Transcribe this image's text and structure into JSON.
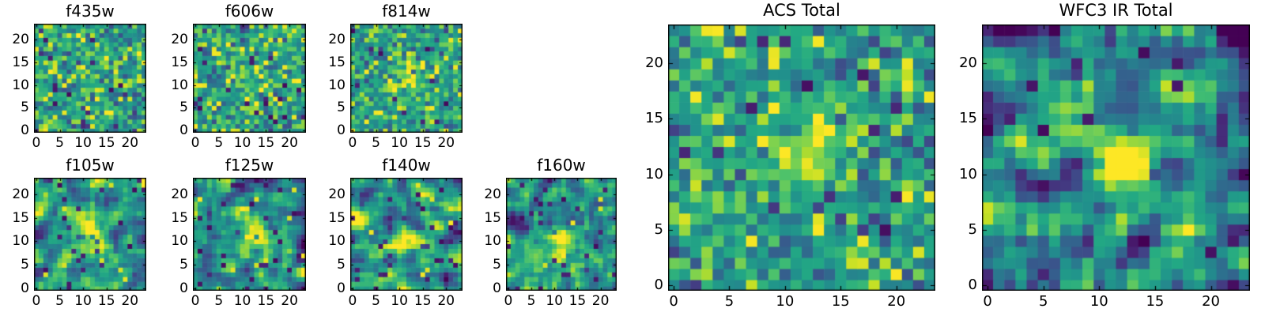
{
  "figure": {
    "background": "#ffffff",
    "text_color": "#000000",
    "frame_color": "#000000",
    "colormap": "viridis",
    "colormap_stops": [
      "#440154",
      "#482475",
      "#414487",
      "#355f8d",
      "#2a788e",
      "#21918c",
      "#22a884",
      "#44bf70",
      "#7ad151",
      "#bddf26",
      "#fde725"
    ]
  },
  "chart_data": [
    {
      "type": "heatmap",
      "title": "f435w",
      "grid_size": [
        24,
        24
      ],
      "xlim": [
        -0.5,
        23.5
      ],
      "ylim": [
        -0.5,
        23.5
      ],
      "xticks": [
        0,
        5,
        10,
        15,
        20
      ],
      "yticks": [
        0,
        5,
        10,
        15,
        20
      ],
      "colormap": "viridis",
      "content_summary": "Noisy green/yellow optical cutout, no visible source, scattered dark-purple and yellow outlier pixels",
      "data_model": {
        "seed": 4350,
        "base": 0.57,
        "noise_sigma": 0.17,
        "smooth_passes": 0,
        "gain": 1.0,
        "p_dark": 0.03,
        "p_bright": 0.045,
        "source": {
          "x": 12,
          "y": 11,
          "sigma": 2.5,
          "amplitude": 0.05
        }
      }
    },
    {
      "type": "heatmap",
      "title": "f606w",
      "grid_size": [
        24,
        24
      ],
      "xlim": [
        -0.5,
        23.5
      ],
      "ylim": [
        -0.5,
        23.5
      ],
      "xticks": [
        0,
        5,
        10,
        15,
        20
      ],
      "yticks": [
        0,
        5,
        10,
        15,
        20
      ],
      "colormap": "viridis",
      "content_summary": "Noisy optical cutout with very faint central brightening near (12,11)",
      "data_model": {
        "seed": 6060,
        "base": 0.57,
        "noise_sigma": 0.17,
        "smooth_passes": 0,
        "gain": 1.0,
        "p_dark": 0.03,
        "p_bright": 0.055,
        "source": {
          "x": 12,
          "y": 11,
          "sigma": 2.6,
          "amplitude": 0.13
        }
      }
    },
    {
      "type": "heatmap",
      "title": "f814w",
      "grid_size": [
        24,
        24
      ],
      "xlim": [
        -0.5,
        23.5
      ],
      "ylim": [
        -0.5,
        23.5
      ],
      "xticks": [
        0,
        5,
        10,
        15,
        20
      ],
      "yticks": [
        0,
        5,
        10,
        15,
        20
      ],
      "colormap": "viridis",
      "content_summary": "Noisy optical cutout with faint diffuse yellow source centered near (12,11)",
      "data_model": {
        "seed": 8140,
        "base": 0.57,
        "noise_sigma": 0.16,
        "smooth_passes": 0,
        "gain": 1.0,
        "p_dark": 0.028,
        "p_bright": 0.045,
        "source": {
          "x": 12,
          "y": 11,
          "sigma": 2.8,
          "amplitude": 0.28
        }
      }
    },
    {
      "type": "heatmap",
      "title": "f105w",
      "grid_size": [
        24,
        24
      ],
      "xlim": [
        -0.5,
        23.5
      ],
      "ylim": [
        -0.5,
        23.5
      ],
      "xticks": [
        0,
        5,
        10,
        15,
        20
      ],
      "yticks": [
        0,
        5,
        10,
        15,
        20
      ],
      "colormap": "viridis",
      "content_summary": "Smoother IR cutout, teal/green mottled background, bright yellow blob around (10-15, 10-14), dark pixels near (7,5) and bottom corners",
      "data_model": {
        "seed": 1050,
        "base": 0.5,
        "noise_sigma": 0.26,
        "smooth_passes": 1,
        "gain": 1.9,
        "p_dark": 0.035,
        "p_bright": 0.012,
        "source": {
          "x": 12,
          "y": 12,
          "sigma": 2.3,
          "amplitude": 0.48
        }
      }
    },
    {
      "type": "heatmap",
      "title": "f125w",
      "grid_size": [
        24,
        24
      ],
      "xlim": [
        -0.5,
        23.5
      ],
      "ylim": [
        -0.5,
        23.5
      ],
      "xticks": [
        0,
        5,
        10,
        15,
        20
      ],
      "yticks": [
        0,
        5,
        10,
        15,
        20
      ],
      "colormap": "viridis",
      "content_summary": "Smooth IR cutout with yellow source near (12,11.5) and dark mottling around it",
      "data_model": {
        "seed": 1250,
        "base": 0.5,
        "noise_sigma": 0.27,
        "smooth_passes": 1,
        "gain": 1.9,
        "p_dark": 0.04,
        "p_bright": 0.015,
        "source": {
          "x": 12,
          "y": 11.5,
          "sigma": 2.2,
          "amplitude": 0.45
        }
      }
    },
    {
      "type": "heatmap",
      "title": "f140w",
      "grid_size": [
        24,
        24
      ],
      "xlim": [
        -0.5,
        23.5
      ],
      "ylim": [
        -0.5,
        23.5
      ],
      "xticks": [
        0,
        5,
        10,
        15,
        20
      ],
      "yticks": [
        0,
        5,
        10,
        15,
        20
      ],
      "colormap": "viridis",
      "content_summary": "Smooth IR cutout with strong yellow source near (11.5,10.5), dark purple clumps at upper right",
      "data_model": {
        "seed": 1400,
        "base": 0.5,
        "noise_sigma": 0.26,
        "smooth_passes": 1,
        "gain": 1.9,
        "p_dark": 0.04,
        "p_bright": 0.012,
        "source": {
          "x": 11.5,
          "y": 10.5,
          "sigma": 2.4,
          "amplitude": 0.52
        }
      }
    },
    {
      "type": "heatmap",
      "title": "f160w",
      "grid_size": [
        24,
        24
      ],
      "xlim": [
        -0.5,
        23.5
      ],
      "ylim": [
        -0.5,
        23.5
      ],
      "xticks": [
        0,
        5,
        10,
        15,
        20
      ],
      "yticks": [
        0,
        5,
        10,
        15,
        20
      ],
      "colormap": "viridis",
      "content_summary": "Smooth IR cutout with compact bright yellow source near (11.5,10.5)",
      "data_model": {
        "seed": 1600,
        "base": 0.49,
        "noise_sigma": 0.25,
        "smooth_passes": 1,
        "gain": 1.9,
        "p_dark": 0.04,
        "p_bright": 0.008,
        "source": {
          "x": 11.5,
          "y": 10.5,
          "sigma": 1.9,
          "amplitude": 0.58
        }
      }
    },
    {
      "type": "heatmap",
      "title": "ACS Total",
      "grid_size": [
        24,
        24
      ],
      "xlim": [
        -0.5,
        23.5
      ],
      "ylim": [
        -0.5,
        23.5
      ],
      "xticks": [
        0,
        5,
        10,
        15,
        20
      ],
      "yticks": [
        0,
        5,
        10,
        15,
        20
      ],
      "colormap": "viridis",
      "content_summary": "Large stacked ACS map: green noisy field, diffuse yellow source around (11-14, 10-13), dark purple clump at bottom-left corner, scattered purple and yellow outliers",
      "data_model": {
        "seed": 2001,
        "base": 0.56,
        "noise_sigma": 0.17,
        "smooth_passes": 0,
        "gain": 1.0,
        "p_dark": 0.028,
        "p_bright": 0.045,
        "source": {
          "x": 12.5,
          "y": 11.8,
          "sigma": 2.4,
          "amplitude": 0.38
        }
      }
    },
    {
      "type": "heatmap",
      "title": "WFC3 IR Total",
      "grid_size": [
        24,
        24
      ],
      "xlim": [
        -0.5,
        23.5
      ],
      "ylim": [
        -0.5,
        23.5
      ],
      "xticks": [
        0,
        5,
        10,
        15,
        20
      ],
      "yticks": [
        0,
        5,
        10,
        15,
        20
      ],
      "colormap": "viridis",
      "content_summary": "Large stacked WFC3 IR map: smooth teal background with prominent yellow source centered near (11.5,11), isolated dark purple pixels at (9,5), (17,0), (21,15), right edge",
      "data_model": {
        "seed": 3001,
        "base": 0.44,
        "noise_sigma": 0.3,
        "smooth_passes": 1,
        "gain": 1.9,
        "p_dark": 0.022,
        "p_bright": 0.004,
        "source": {
          "x": 11.5,
          "y": 11,
          "sigma": 2.1,
          "amplitude": 0.62
        }
      }
    }
  ]
}
